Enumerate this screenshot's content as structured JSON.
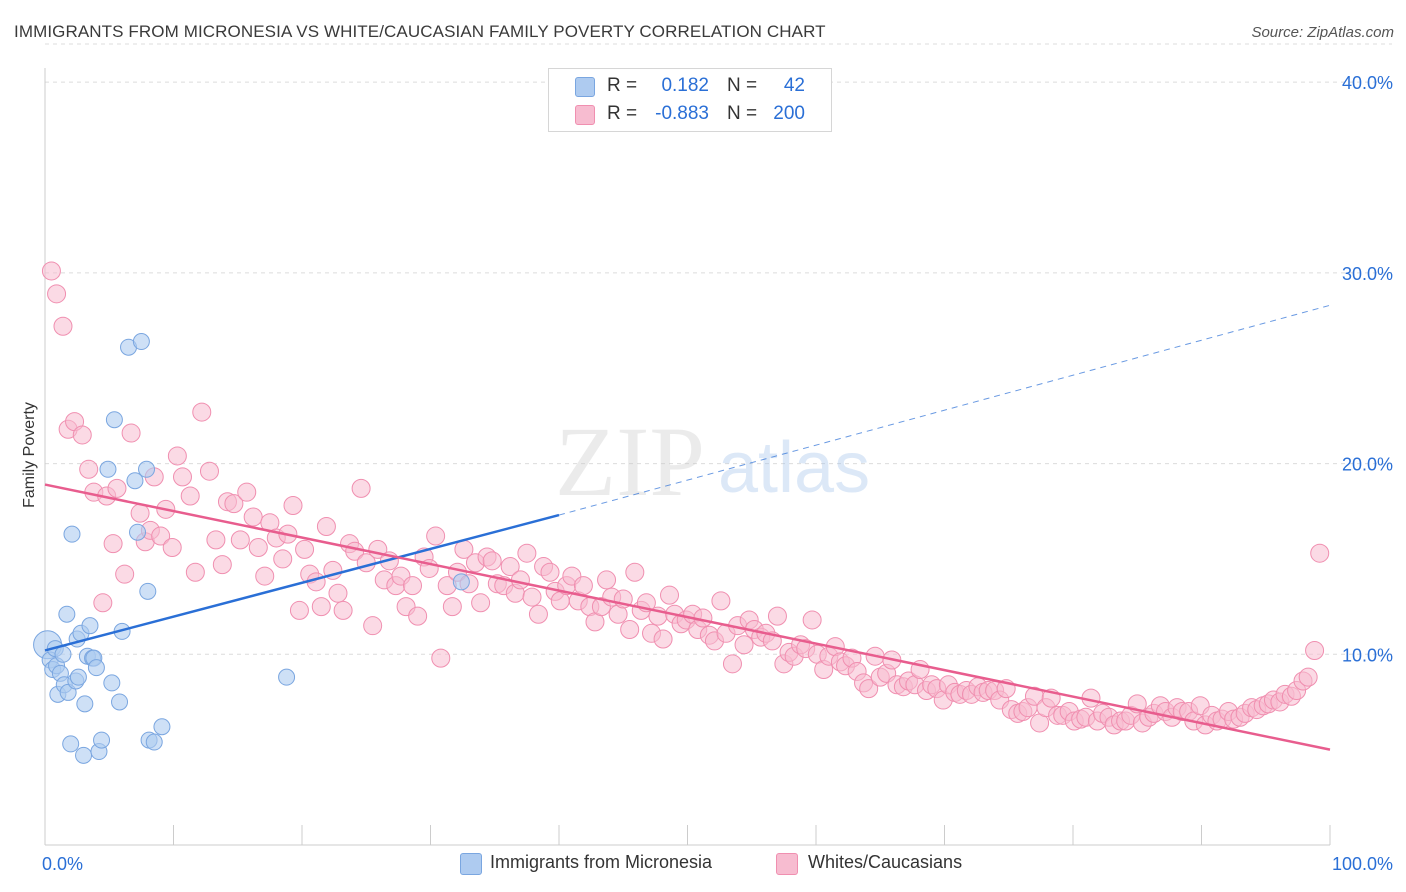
{
  "title": "IMMIGRANTS FROM MICRONESIA VS WHITE/CAUCASIAN FAMILY POVERTY CORRELATION CHART",
  "source": "Source: ZipAtlas.com",
  "watermark": {
    "zip": "ZIP",
    "atlas": "atlas"
  },
  "legend_top": [
    {
      "r_label": "R =",
      "r_value": "0.182",
      "n_label": "N =",
      "n_value": "42"
    },
    {
      "r_label": "R =",
      "r_value": "-0.883",
      "n_label": "N =",
      "n_value": "200"
    }
  ],
  "legend_bottom": [
    "Immigrants from Micronesia",
    "Whites/Caucasians"
  ],
  "colors": {
    "blue_fill": "#aecbf0",
    "blue_stroke": "#7aa6e0",
    "blue_line": "#2a6fd6",
    "pink_fill": "#f7bcd0",
    "pink_stroke": "#f08fb0",
    "pink_line": "#e85d8e",
    "axis_text": "#2a6fd6",
    "grid": "#dcdcdc"
  },
  "chart_data": {
    "type": "scatter",
    "title": "IMMIGRANTS FROM MICRONESIA VS WHITE/CAUCASIAN FAMILY POVERTY CORRELATION CHART",
    "xlabel": "",
    "ylabel": "Family Poverty",
    "xlim": [
      0,
      100
    ],
    "ylim": [
      0,
      42
    ],
    "x_tick_labels": [
      "0.0%",
      "100.0%"
    ],
    "y_tick_labels": [
      "10.0%",
      "20.0%",
      "30.0%",
      "40.0%"
    ],
    "y_ticks": [
      10,
      20,
      30,
      40
    ],
    "grid": true,
    "legend_position": "top-center",
    "series": [
      {
        "name": "Immigrants from Micronesia",
        "color": "#aecbf0",
        "points": [
          [
            0.2,
            10.5
          ],
          [
            0.4,
            9.7
          ],
          [
            0.6,
            9.2
          ],
          [
            0.8,
            10.3
          ],
          [
            0.9,
            9.4
          ],
          [
            1.0,
            7.9
          ],
          [
            1.2,
            9.0
          ],
          [
            1.4,
            10.0
          ],
          [
            1.5,
            8.4
          ],
          [
            1.7,
            12.1
          ],
          [
            1.8,
            8.0
          ],
          [
            2.0,
            5.3
          ],
          [
            2.1,
            16.3
          ],
          [
            2.4,
            8.6
          ],
          [
            2.5,
            10.8
          ],
          [
            2.6,
            8.8
          ],
          [
            2.8,
            11.1
          ],
          [
            3.0,
            4.7
          ],
          [
            3.1,
            7.4
          ],
          [
            3.3,
            9.9
          ],
          [
            3.5,
            11.5
          ],
          [
            3.7,
            9.8
          ],
          [
            3.8,
            9.8
          ],
          [
            4.0,
            9.3
          ],
          [
            4.2,
            4.9
          ],
          [
            4.4,
            5.5
          ],
          [
            4.9,
            19.7
          ],
          [
            5.2,
            8.5
          ],
          [
            5.4,
            22.3
          ],
          [
            5.8,
            7.5
          ],
          [
            6.0,
            11.2
          ],
          [
            6.5,
            26.1
          ],
          [
            7.0,
            19.1
          ],
          [
            7.2,
            16.4
          ],
          [
            7.5,
            26.4
          ],
          [
            7.9,
            19.7
          ],
          [
            8.0,
            13.3
          ],
          [
            8.1,
            5.5
          ],
          [
            8.5,
            5.4
          ],
          [
            9.1,
            6.2
          ],
          [
            18.8,
            8.8
          ],
          [
            32.4,
            13.8
          ]
        ]
      },
      {
        "name": "Whites/Caucasians",
        "color": "#f7bcd0",
        "points": [
          [
            0.5,
            30.1
          ],
          [
            0.9,
            28.9
          ],
          [
            1.4,
            27.2
          ],
          [
            1.8,
            21.8
          ],
          [
            2.3,
            22.2
          ],
          [
            2.9,
            21.5
          ],
          [
            3.4,
            19.7
          ],
          [
            3.8,
            18.5
          ],
          [
            4.5,
            12.7
          ],
          [
            4.8,
            18.3
          ],
          [
            5.3,
            15.8
          ],
          [
            5.6,
            18.7
          ],
          [
            6.2,
            14.2
          ],
          [
            6.7,
            21.6
          ],
          [
            7.4,
            17.4
          ],
          [
            7.8,
            15.9
          ],
          [
            8.2,
            16.5
          ],
          [
            8.5,
            19.3
          ],
          [
            9.0,
            16.2
          ],
          [
            9.4,
            17.6
          ],
          [
            9.9,
            15.6
          ],
          [
            10.3,
            20.4
          ],
          [
            10.7,
            19.3
          ],
          [
            11.3,
            18.3
          ],
          [
            11.7,
            14.3
          ],
          [
            12.2,
            22.7
          ],
          [
            12.8,
            19.6
          ],
          [
            13.3,
            16.0
          ],
          [
            13.8,
            14.7
          ],
          [
            14.2,
            18.0
          ],
          [
            14.7,
            17.9
          ],
          [
            15.2,
            16.0
          ],
          [
            15.7,
            18.5
          ],
          [
            16.2,
            17.2
          ],
          [
            16.6,
            15.6
          ],
          [
            17.1,
            14.1
          ],
          [
            17.5,
            16.9
          ],
          [
            18.0,
            16.1
          ],
          [
            18.5,
            15.0
          ],
          [
            18.9,
            16.3
          ],
          [
            19.3,
            17.8
          ],
          [
            19.8,
            12.3
          ],
          [
            20.2,
            15.5
          ],
          [
            20.6,
            14.2
          ],
          [
            21.1,
            13.8
          ],
          [
            21.5,
            12.5
          ],
          [
            21.9,
            16.7
          ],
          [
            22.4,
            14.4
          ],
          [
            22.8,
            13.2
          ],
          [
            23.2,
            12.3
          ],
          [
            23.7,
            15.8
          ],
          [
            24.1,
            15.4
          ],
          [
            24.6,
            18.7
          ],
          [
            25.0,
            14.8
          ],
          [
            25.5,
            11.5
          ],
          [
            25.9,
            15.5
          ],
          [
            26.4,
            13.9
          ],
          [
            26.8,
            14.9
          ],
          [
            27.3,
            13.6
          ],
          [
            27.7,
            14.1
          ],
          [
            28.1,
            12.5
          ],
          [
            28.6,
            13.6
          ],
          [
            29.0,
            12.0
          ],
          [
            29.5,
            15.1
          ],
          [
            29.9,
            14.5
          ],
          [
            30.4,
            16.2
          ],
          [
            30.8,
            9.8
          ],
          [
            31.3,
            13.6
          ],
          [
            31.7,
            12.5
          ],
          [
            32.1,
            14.3
          ],
          [
            32.6,
            15.5
          ],
          [
            33.0,
            13.7
          ],
          [
            33.5,
            14.8
          ],
          [
            33.9,
            12.7
          ],
          [
            34.4,
            15.1
          ],
          [
            34.8,
            14.9
          ],
          [
            35.2,
            13.7
          ],
          [
            35.7,
            13.6
          ],
          [
            36.2,
            14.6
          ],
          [
            36.6,
            13.2
          ],
          [
            37.0,
            13.9
          ],
          [
            37.5,
            15.3
          ],
          [
            37.9,
            13.0
          ],
          [
            38.4,
            12.1
          ],
          [
            38.8,
            14.6
          ],
          [
            39.3,
            14.3
          ],
          [
            39.7,
            13.3
          ],
          [
            40.1,
            12.8
          ],
          [
            40.6,
            13.6
          ],
          [
            41.0,
            14.1
          ],
          [
            41.5,
            12.8
          ],
          [
            41.9,
            13.6
          ],
          [
            42.4,
            12.5
          ],
          [
            42.8,
            11.7
          ],
          [
            43.3,
            12.5
          ],
          [
            43.7,
            13.9
          ],
          [
            44.1,
            13.0
          ],
          [
            44.6,
            12.1
          ],
          [
            45.0,
            12.9
          ],
          [
            45.5,
            11.3
          ],
          [
            45.9,
            14.3
          ],
          [
            46.4,
            12.3
          ],
          [
            46.8,
            12.7
          ],
          [
            47.2,
            11.1
          ],
          [
            47.7,
            12.0
          ],
          [
            48.1,
            10.8
          ],
          [
            48.6,
            13.1
          ],
          [
            49.0,
            12.1
          ],
          [
            49.5,
            11.6
          ],
          [
            49.9,
            11.8
          ],
          [
            50.4,
            12.1
          ],
          [
            50.8,
            11.3
          ],
          [
            51.2,
            11.9
          ],
          [
            51.7,
            11.0
          ],
          [
            52.1,
            10.7
          ],
          [
            52.6,
            12.8
          ],
          [
            53.0,
            11.1
          ],
          [
            53.5,
            9.5
          ],
          [
            53.9,
            11.5
          ],
          [
            54.4,
            10.5
          ],
          [
            54.8,
            11.8
          ],
          [
            55.2,
            11.3
          ],
          [
            55.7,
            10.9
          ],
          [
            56.1,
            11.1
          ],
          [
            56.6,
            10.7
          ],
          [
            57.0,
            12.0
          ],
          [
            57.5,
            9.5
          ],
          [
            57.9,
            10.1
          ],
          [
            58.3,
            9.9
          ],
          [
            58.8,
            10.5
          ],
          [
            59.2,
            10.3
          ],
          [
            59.7,
            11.8
          ],
          [
            60.1,
            10.0
          ],
          [
            60.6,
            9.2
          ],
          [
            61.0,
            9.9
          ],
          [
            61.5,
            10.4
          ],
          [
            61.9,
            9.6
          ],
          [
            62.3,
            9.4
          ],
          [
            62.8,
            9.8
          ],
          [
            63.2,
            9.1
          ],
          [
            63.7,
            8.5
          ],
          [
            64.1,
            8.2
          ],
          [
            64.6,
            9.9
          ],
          [
            65.0,
            8.8
          ],
          [
            65.5,
            9.0
          ],
          [
            65.9,
            9.7
          ],
          [
            66.3,
            8.4
          ],
          [
            66.8,
            8.3
          ],
          [
            67.2,
            8.6
          ],
          [
            67.7,
            8.4
          ],
          [
            68.1,
            9.2
          ],
          [
            68.6,
            8.1
          ],
          [
            69.0,
            8.4
          ],
          [
            69.4,
            8.2
          ],
          [
            69.9,
            7.6
          ],
          [
            70.3,
            8.4
          ],
          [
            70.8,
            8.0
          ],
          [
            71.2,
            7.9
          ],
          [
            71.7,
            8.1
          ],
          [
            72.1,
            7.9
          ],
          [
            72.6,
            8.3
          ],
          [
            73.0,
            8.0
          ],
          [
            73.4,
            8.1
          ],
          [
            73.9,
            8.1
          ],
          [
            74.3,
            7.6
          ],
          [
            74.8,
            8.2
          ],
          [
            75.2,
            7.1
          ],
          [
            75.7,
            6.9
          ],
          [
            76.1,
            7.0
          ],
          [
            76.5,
            7.2
          ],
          [
            77.0,
            7.8
          ],
          [
            77.4,
            6.4
          ],
          [
            77.9,
            7.2
          ],
          [
            78.3,
            7.7
          ],
          [
            78.8,
            6.8
          ],
          [
            79.2,
            6.8
          ],
          [
            79.7,
            7.0
          ],
          [
            80.1,
            6.5
          ],
          [
            80.6,
            6.6
          ],
          [
            81.0,
            6.7
          ],
          [
            81.4,
            7.7
          ],
          [
            81.9,
            6.5
          ],
          [
            82.3,
            6.9
          ],
          [
            82.8,
            6.7
          ],
          [
            83.2,
            6.3
          ],
          [
            83.7,
            6.5
          ],
          [
            84.1,
            6.5
          ],
          [
            84.5,
            6.8
          ],
          [
            85.0,
            7.4
          ],
          [
            85.4,
            6.4
          ],
          [
            85.9,
            6.7
          ],
          [
            86.3,
            6.9
          ],
          [
            86.8,
            7.3
          ],
          [
            87.2,
            7.0
          ],
          [
            87.7,
            6.7
          ],
          [
            88.1,
            7.2
          ],
          [
            88.5,
            7.0
          ],
          [
            89.0,
            7.0
          ],
          [
            89.4,
            6.5
          ],
          [
            89.9,
            7.3
          ],
          [
            90.3,
            6.3
          ],
          [
            90.8,
            6.8
          ],
          [
            91.2,
            6.5
          ],
          [
            91.6,
            6.6
          ],
          [
            92.1,
            7.0
          ],
          [
            92.5,
            6.6
          ],
          [
            93.0,
            6.7
          ],
          [
            93.4,
            6.9
          ],
          [
            93.9,
            7.2
          ],
          [
            94.3,
            7.1
          ],
          [
            94.8,
            7.3
          ],
          [
            95.2,
            7.4
          ],
          [
            95.6,
            7.6
          ],
          [
            96.1,
            7.5
          ],
          [
            96.5,
            7.9
          ],
          [
            97.0,
            7.8
          ],
          [
            97.4,
            8.1
          ],
          [
            97.9,
            8.6
          ],
          [
            98.3,
            8.8
          ],
          [
            98.8,
            10.2
          ],
          [
            99.2,
            15.3
          ]
        ]
      }
    ],
    "trendlines": [
      {
        "series": "Immigrants from Micronesia",
        "solid_from": [
          0,
          10.2
        ],
        "solid_to": [
          40,
          17.3
        ],
        "dashed_to": [
          100,
          28.3
        ],
        "color": "#2a6fd6"
      },
      {
        "series": "Whites/Caucasians",
        "from": [
          0,
          18.9
        ],
        "to": [
          100,
          5.0
        ],
        "color": "#e85d8e"
      }
    ]
  }
}
